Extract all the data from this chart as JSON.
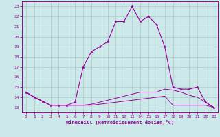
{
  "hours": [
    0,
    1,
    2,
    3,
    4,
    5,
    6,
    7,
    8,
    9,
    10,
    11,
    12,
    13,
    14,
    15,
    16,
    17,
    18,
    19,
    20,
    21,
    22,
    23
  ],
  "temp": [
    14.5,
    14.0,
    13.6,
    13.2,
    13.2,
    13.2,
    13.5,
    17.0,
    18.5,
    19.0,
    19.5,
    21.5,
    21.5,
    23.0,
    21.5,
    22.0,
    21.2,
    19.0,
    15.0,
    14.8,
    14.8,
    15.0,
    13.5,
    13.0
  ],
  "wc1": [
    14.5,
    14.0,
    13.6,
    13.2,
    13.2,
    13.2,
    13.2,
    13.2,
    13.2,
    13.3,
    13.4,
    13.5,
    13.6,
    13.7,
    13.8,
    13.9,
    14.0,
    14.1,
    13.2,
    13.2,
    13.2,
    13.2,
    13.2,
    13.0
  ],
  "wc2": [
    14.5,
    14.0,
    13.6,
    13.2,
    13.2,
    13.2,
    13.2,
    13.2,
    13.3,
    13.5,
    13.7,
    13.9,
    14.1,
    14.3,
    14.5,
    14.5,
    14.5,
    14.8,
    14.7,
    14.5,
    14.2,
    14.0,
    13.5,
    13.0
  ],
  "line_color": "#990099",
  "bg_color": "#cce8e8",
  "grid_color": "#aacccc",
  "xlabel": "Windchill (Refroidissement éolien,°C)",
  "ylim": [
    12.5,
    23.5
  ],
  "xlim": [
    -0.5,
    23.5
  ],
  "yticks": [
    13,
    14,
    15,
    16,
    17,
    18,
    19,
    20,
    21,
    22,
    23
  ],
  "xticks": [
    0,
    1,
    2,
    3,
    4,
    5,
    6,
    7,
    8,
    9,
    10,
    11,
    12,
    13,
    14,
    15,
    16,
    17,
    18,
    19,
    20,
    21,
    22,
    23
  ]
}
